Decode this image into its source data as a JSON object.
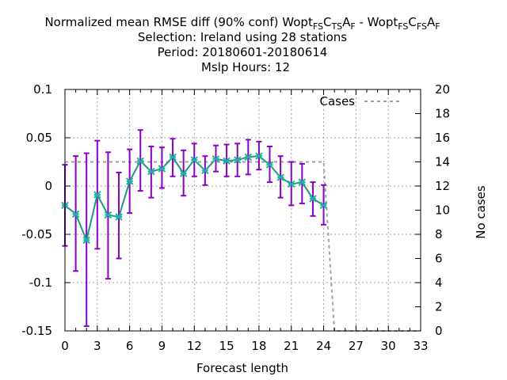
{
  "title": {
    "line1_prefix": "Normalized mean RMSE diff (90% conf) Wopt",
    "line1_sub_a": "FS",
    "line1_mid_a": "C",
    "line1_sub_b": "TS",
    "line1_mid_b": "A",
    "line1_sub_c": "F",
    "line1_mid_c": " - Wopt",
    "line1_sub_d": "FS",
    "line1_mid_d": "C",
    "line1_sub_e": "FS",
    "line1_mid_e": "A",
    "line1_sub_f": "F",
    "line2": "Selection: Ireland using    28 stations",
    "line3": "Period: 20180601-20180614",
    "line4": "Mslp   Hours:  12"
  },
  "chart_data": {
    "type": "line",
    "xlabel": "Forecast length",
    "ylabel_right": "No cases",
    "xlim": [
      0,
      33
    ],
    "ylim": [
      -0.15,
      0.1
    ],
    "y2lim": [
      0,
      20
    ],
    "x_ticks": [
      0,
      3,
      6,
      9,
      12,
      15,
      18,
      21,
      24,
      27,
      30,
      33
    ],
    "y_ticks": [
      "-0.15",
      "-0.1",
      "-0.05",
      "0",
      "0.05",
      "0.1"
    ],
    "y_tick_values": [
      -0.15,
      -0.1,
      -0.05,
      0,
      0.05,
      0.1
    ],
    "y2_ticks": [
      0,
      2,
      4,
      6,
      8,
      10,
      12,
      14,
      16,
      18,
      20
    ],
    "grid": true,
    "legend": {
      "position": "top-right",
      "entries": [
        "Cases"
      ]
    },
    "series": [
      {
        "kind": "errorbar-line",
        "color": "#1a9a8a",
        "marker_color": "#20b0a0",
        "errorbar_color": "#8a00c8",
        "x": [
          0,
          1,
          2,
          3,
          4,
          5,
          6,
          7,
          8,
          9,
          10,
          11,
          12,
          13,
          14,
          15,
          16,
          17,
          18,
          19,
          20,
          21,
          22,
          23,
          24
        ],
        "y": [
          -0.02,
          -0.029,
          -0.056,
          -0.009,
          -0.03,
          -0.032,
          0.005,
          0.026,
          0.015,
          0.018,
          0.03,
          0.013,
          0.027,
          0.016,
          0.028,
          0.026,
          0.027,
          0.03,
          0.031,
          0.022,
          0.009,
          0.002,
          0.004,
          -0.013,
          -0.02
        ],
        "y_low": [
          -0.062,
          -0.088,
          -0.145,
          -0.065,
          -0.096,
          -0.075,
          -0.028,
          -0.005,
          -0.012,
          -0.002,
          0.01,
          -0.01,
          0.01,
          0.001,
          0.015,
          0.01,
          0.01,
          0.012,
          0.017,
          0.004,
          -0.012,
          -0.02,
          -0.018,
          -0.031,
          -0.04
        ],
        "y_high": [
          0.022,
          0.031,
          0.034,
          0.047,
          0.035,
          0.014,
          0.038,
          0.058,
          0.041,
          0.04,
          0.049,
          0.037,
          0.044,
          0.031,
          0.042,
          0.043,
          0.044,
          0.048,
          0.046,
          0.041,
          0.031,
          0.025,
          0.023,
          0.004,
          0.001
        ]
      },
      {
        "name": "Cases",
        "kind": "cases",
        "axis": "y2",
        "color": "#a0a0a0",
        "x": [
          0,
          1,
          2,
          3,
          4,
          5,
          6,
          7,
          8,
          9,
          10,
          11,
          12,
          13,
          14,
          15,
          16,
          17,
          18,
          19,
          20,
          21,
          22,
          23,
          24,
          25,
          26,
          27,
          28,
          29,
          30,
          31,
          32,
          33
        ],
        "y": [
          14,
          14,
          14,
          14,
          14,
          14,
          14,
          14,
          14,
          14,
          14,
          14,
          14,
          14,
          14,
          14,
          14,
          14,
          14,
          14,
          14,
          14,
          14,
          14,
          14,
          0,
          0,
          0,
          0,
          0,
          0,
          0,
          0,
          0
        ]
      }
    ]
  }
}
